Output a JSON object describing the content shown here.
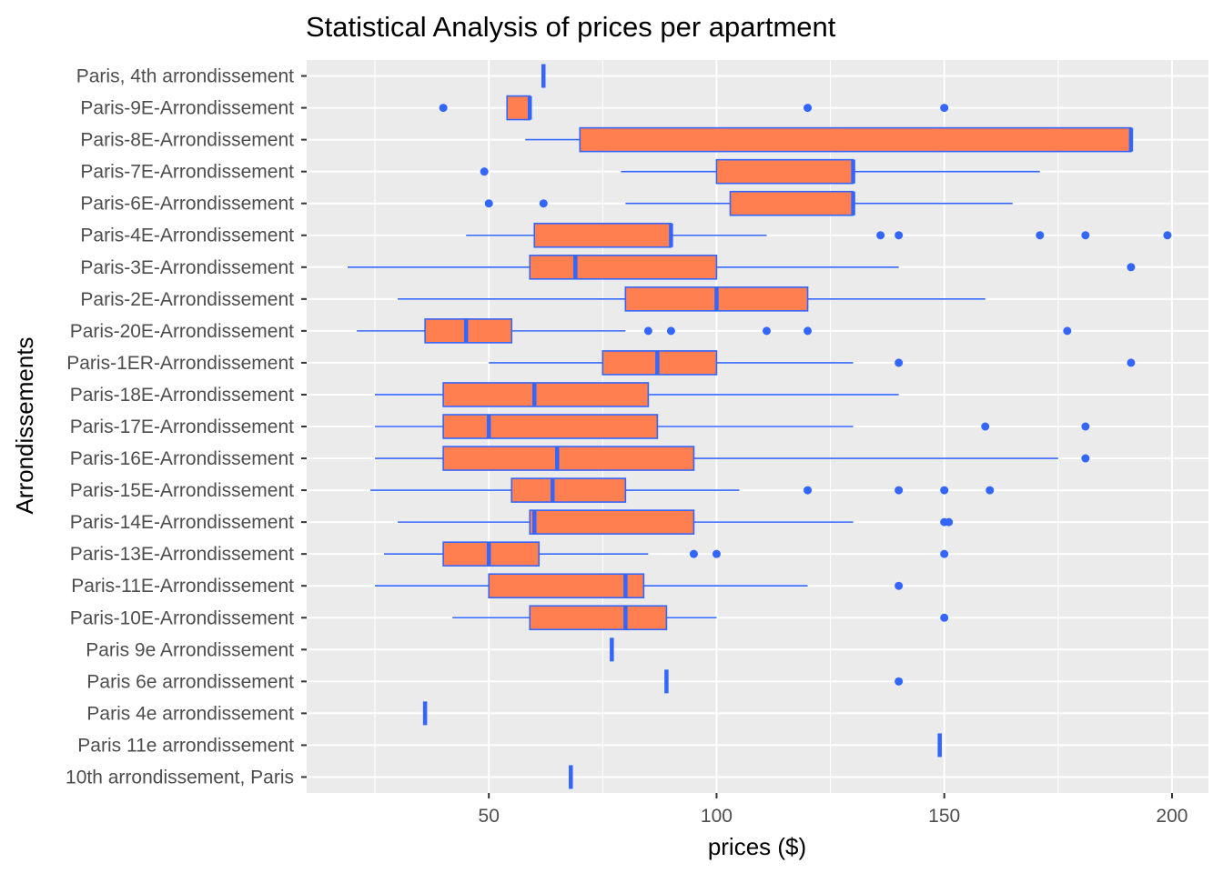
{
  "chart_data": {
    "type": "boxplot",
    "title": "Statistical Analysis of prices per apartment",
    "xlabel": "prices ($)",
    "ylabel": "Arrondissements",
    "xlim": [
      10,
      208
    ],
    "x_ticks": [
      50,
      100,
      150,
      200
    ],
    "grid": true,
    "colors": {
      "panel": "#ebebeb",
      "grid": "#ffffff",
      "box_fill": "#ff7f50",
      "box_line": "#3366ff",
      "outlier": "#3366ff"
    },
    "categories": [
      "Paris, 4th arrondissement",
      "Paris-9E-Arrondissement",
      "Paris-8E-Arrondissement",
      "Paris-7E-Arrondissement",
      "Paris-6E-Arrondissement",
      "Paris-4E-Arrondissement",
      "Paris-3E-Arrondissement",
      "Paris-2E-Arrondissement",
      "Paris-20E-Arrondissement",
      "Paris-1ER-Arrondissement",
      "Paris-18E-Arrondissement",
      "Paris-17E-Arrondissement",
      "Paris-16E-Arrondissement",
      "Paris-15E-Arrondissement",
      "Paris-14E-Arrondissement",
      "Paris-13E-Arrondissement",
      "Paris-11E-Arrondissement",
      "Paris-10E-Arrondissement",
      "Paris 9e Arrondissement",
      "Paris 6e arrondissement",
      "Paris 4e arrondissement",
      "Paris 11e arrondissement",
      "10th arrondissement, Paris"
    ],
    "boxes": [
      {
        "min": 62,
        "q1": 62,
        "median": 62,
        "q3": 62,
        "max": 62,
        "outliers": []
      },
      {
        "min": 54,
        "q1": 54,
        "median": 59,
        "q3": 59,
        "max": 59,
        "outliers": [
          40,
          120,
          150
        ]
      },
      {
        "min": 58,
        "q1": 70,
        "median": 191,
        "q3": 191,
        "max": 191,
        "outliers": []
      },
      {
        "min": 79,
        "q1": 100,
        "median": 130,
        "q3": 130,
        "max": 171,
        "outliers": [
          49
        ]
      },
      {
        "min": 80,
        "q1": 103,
        "median": 130,
        "q3": 130,
        "max": 165,
        "outliers": [
          50,
          62
        ]
      },
      {
        "min": 45,
        "q1": 60,
        "median": 90,
        "q3": 90,
        "max": 111,
        "outliers": [
          136,
          140,
          171,
          181,
          199
        ]
      },
      {
        "min": 19,
        "q1": 59,
        "median": 69,
        "q3": 100,
        "max": 140,
        "outliers": [
          191
        ]
      },
      {
        "min": 30,
        "q1": 80,
        "median": 100,
        "q3": 120,
        "max": 159,
        "outliers": []
      },
      {
        "min": 21,
        "q1": 36,
        "median": 45,
        "q3": 55,
        "max": 80,
        "outliers": [
          85,
          90,
          111,
          120,
          177
        ]
      },
      {
        "min": 50,
        "q1": 75,
        "median": 87,
        "q3": 100,
        "max": 130,
        "outliers": [
          140,
          191
        ]
      },
      {
        "min": 25,
        "q1": 40,
        "median": 60,
        "q3": 85,
        "max": 140,
        "outliers": []
      },
      {
        "min": 25,
        "q1": 40,
        "median": 50,
        "q3": 87,
        "max": 130,
        "outliers": [
          159,
          181
        ]
      },
      {
        "min": 25,
        "q1": 40,
        "median": 65,
        "q3": 95,
        "max": 175,
        "outliers": [
          181
        ]
      },
      {
        "min": 24,
        "q1": 55,
        "median": 64,
        "q3": 80,
        "max": 105,
        "outliers": [
          120,
          140,
          150,
          160
        ]
      },
      {
        "min": 30,
        "q1": 59,
        "median": 60,
        "q3": 95,
        "max": 130,
        "outliers": [
          150,
          151
        ]
      },
      {
        "min": 27,
        "q1": 40,
        "median": 50,
        "q3": 61,
        "max": 85,
        "outliers": [
          95,
          100,
          150
        ]
      },
      {
        "min": 25,
        "q1": 50,
        "median": 80,
        "q3": 84,
        "max": 120,
        "outliers": [
          140
        ]
      },
      {
        "min": 42,
        "q1": 59,
        "median": 80,
        "q3": 89,
        "max": 100,
        "outliers": [
          150
        ]
      },
      {
        "min": 77,
        "q1": 77,
        "median": 77,
        "q3": 77,
        "max": 77,
        "outliers": []
      },
      {
        "min": 89,
        "q1": 89,
        "median": 89,
        "q3": 89,
        "max": 89,
        "outliers": [
          140
        ]
      },
      {
        "min": 36,
        "q1": 36,
        "median": 36,
        "q3": 36,
        "max": 36,
        "outliers": []
      },
      {
        "min": 149,
        "q1": 149,
        "median": 149,
        "q3": 149,
        "max": 149,
        "outliers": []
      },
      {
        "min": 68,
        "q1": 68,
        "median": 68,
        "q3": 68,
        "max": 68,
        "outliers": []
      }
    ]
  }
}
